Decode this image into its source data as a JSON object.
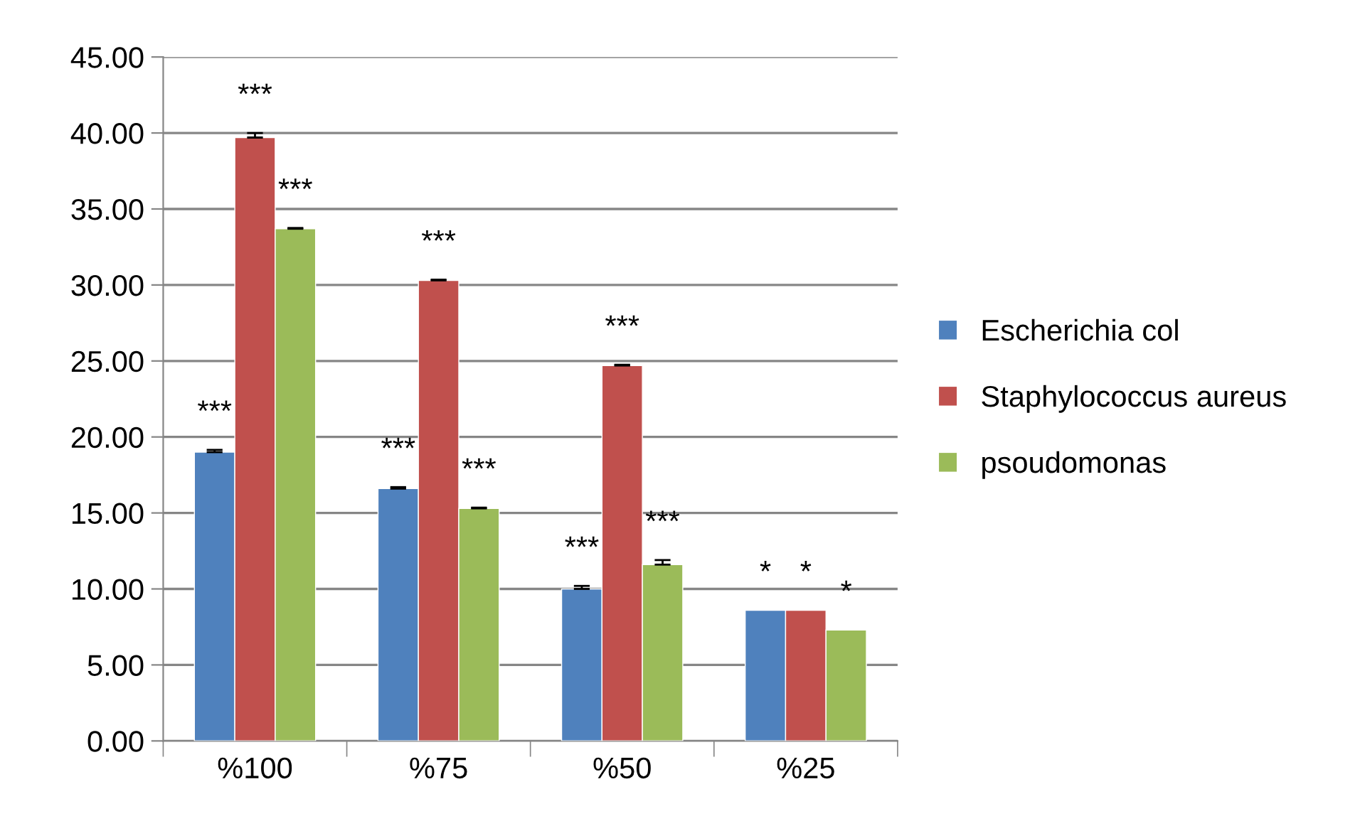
{
  "chart_data": {
    "type": "bar",
    "categories": [
      "%100",
      "%75",
      "%50",
      "%25"
    ],
    "series": [
      {
        "name": "Escherichia col",
        "color": "#4f81bd",
        "values": [
          19.0,
          16.6,
          10.0,
          8.6
        ],
        "errors": [
          [
            19.0,
            19.15
          ],
          [
            16.6,
            16.7
          ],
          [
            10.0,
            10.2
          ],
          null
        ],
        "value_labels": [
          "***",
          "***",
          "***",
          "*"
        ]
      },
      {
        "name": "Staphylococcus aureus",
        "color": "#c0504d",
        "values": [
          39.7,
          30.3,
          24.7,
          8.6
        ],
        "errors": [
          [
            39.7,
            40.0
          ],
          [
            30.3,
            30.35
          ],
          [
            24.7,
            24.75
          ],
          null
        ],
        "value_labels": [
          "***",
          "***",
          "***",
          "*"
        ]
      },
      {
        "name": "psoudomonas",
        "color": "#9bbb59",
        "values": [
          33.7,
          15.3,
          11.6,
          7.3
        ],
        "errors": [
          [
            33.7,
            33.75
          ],
          [
            15.3,
            15.35
          ],
          [
            11.6,
            11.9
          ],
          null
        ],
        "value_labels": [
          "***",
          "***",
          "***",
          "*"
        ]
      }
    ],
    "ylim": [
      0,
      45
    ],
    "yticks": [
      {
        "value": 0,
        "label": "0.00"
      },
      {
        "value": 5,
        "label": "5.00"
      },
      {
        "value": 10,
        "label": "10.00"
      },
      {
        "value": 15,
        "label": "15.00"
      },
      {
        "value": 20,
        "label": "20.00"
      },
      {
        "value": 25,
        "label": "25.00"
      },
      {
        "value": 30,
        "label": "30.00"
      },
      {
        "value": 35,
        "label": "35.00"
      },
      {
        "value": 40,
        "label": "40.00"
      },
      {
        "value": 45,
        "label": "45.00"
      }
    ],
    "grid": "y",
    "legend": "right"
  }
}
